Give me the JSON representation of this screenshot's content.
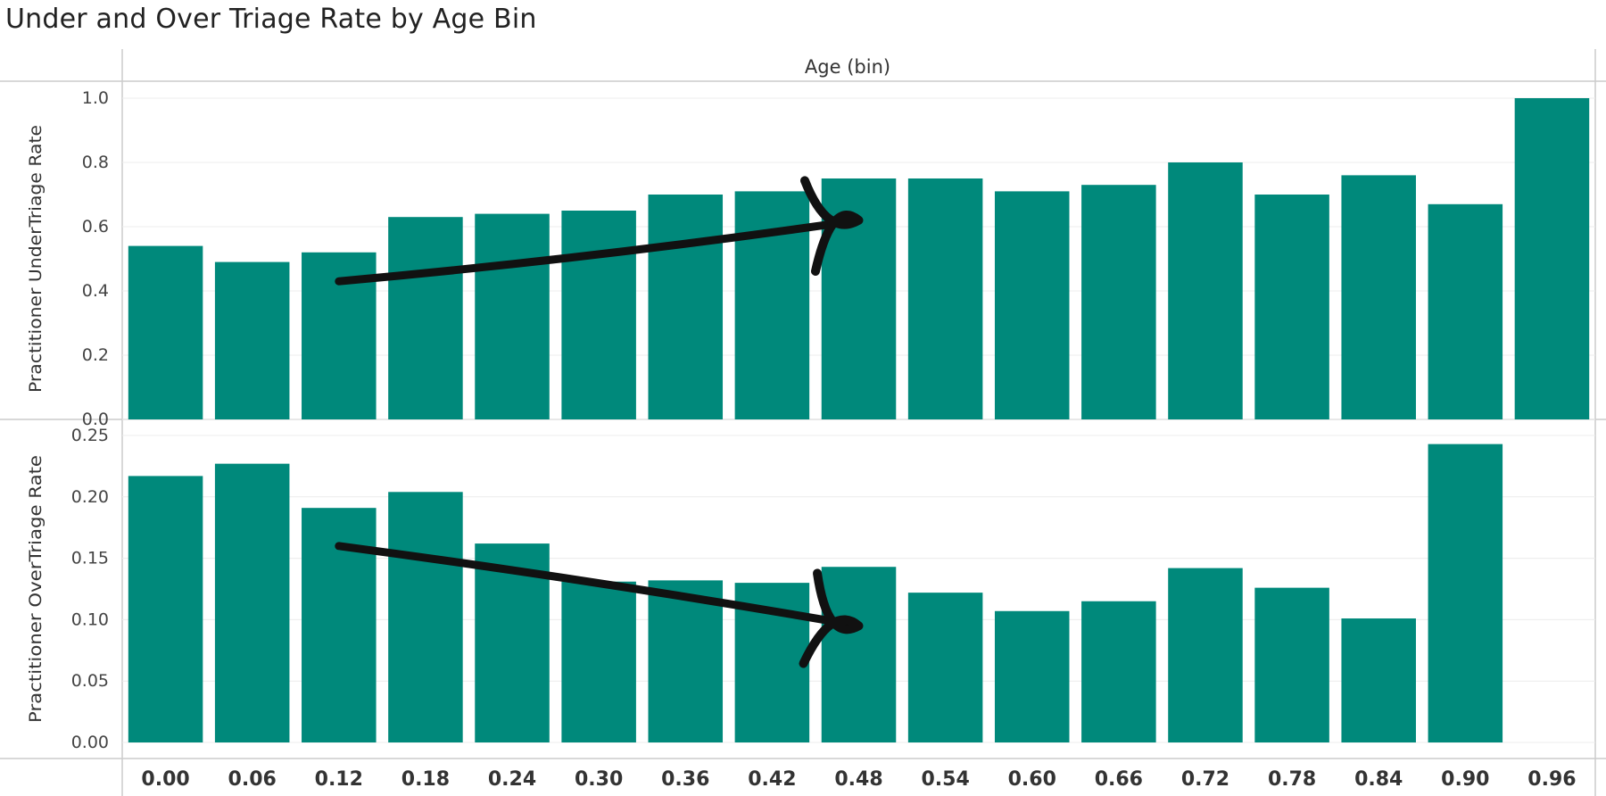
{
  "title": "Under and Over Triage Rate by Age Bin",
  "colors": {
    "bar": "#00897b",
    "grid": "#ececec",
    "axis": "#cccccc",
    "arrow": "#111111"
  },
  "chart_data": {
    "type": "bar",
    "title": "Under and Over Triage Rate by Age Bin",
    "xlabel": "Age (bin)",
    "categories": [
      "0.00",
      "0.06",
      "0.12",
      "0.18",
      "0.24",
      "0.30",
      "0.36",
      "0.42",
      "0.48",
      "0.54",
      "0.60",
      "0.66",
      "0.72",
      "0.78",
      "0.84",
      "0.90",
      "0.96"
    ],
    "panels": [
      {
        "ylabel": "Practitioner UnderTriage Rate",
        "ylim": [
          0,
          1.0
        ],
        "yticks": [
          "0.0",
          "0.2",
          "0.4",
          "0.6",
          "0.8",
          "1.0"
        ],
        "yticks_values": [
          0,
          0.2,
          0.4,
          0.6,
          0.8,
          1.0
        ],
        "values": [
          0.54,
          0.49,
          0.52,
          0.63,
          0.64,
          0.65,
          0.7,
          0.71,
          0.75,
          0.75,
          0.71,
          0.73,
          0.8,
          0.7,
          0.76,
          0.67,
          1.0
        ],
        "arrow": {
          "from": [
            "0.12",
            0.43
          ],
          "to": [
            "0.48",
            0.62
          ],
          "direction": "up"
        }
      },
      {
        "ylabel": "Practitioner OverTriage Rate",
        "ylim": [
          0,
          0.25
        ],
        "yticks": [
          "0.00",
          "0.05",
          "0.10",
          "0.15",
          "0.20",
          "0.25"
        ],
        "yticks_values": [
          0,
          0.05,
          0.1,
          0.15,
          0.2,
          0.25
        ],
        "values": [
          0.217,
          0.227,
          0.191,
          0.204,
          0.162,
          0.131,
          0.132,
          0.13,
          0.143,
          0.122,
          0.107,
          0.115,
          0.142,
          0.126,
          0.101,
          0.243,
          0.0
        ],
        "arrow": {
          "from": [
            "0.12",
            0.16
          ],
          "to": [
            "0.48",
            0.095
          ],
          "direction": "down"
        }
      }
    ],
    "grid": true
  }
}
